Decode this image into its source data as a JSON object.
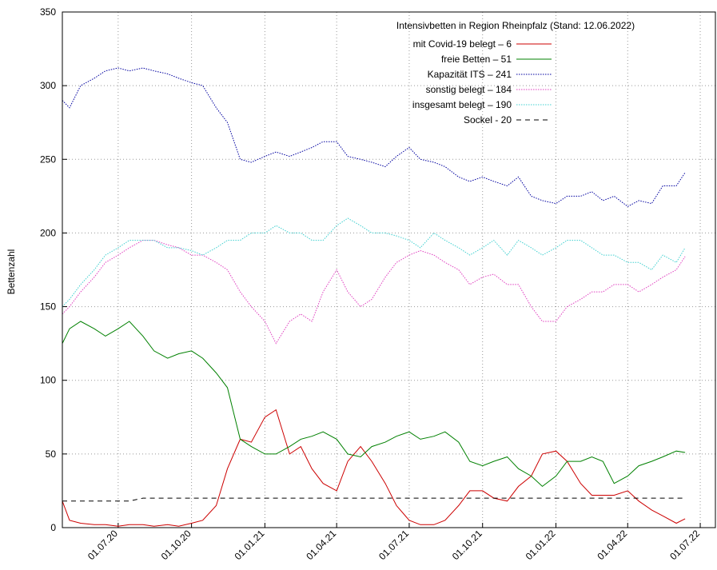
{
  "chart_data": {
    "type": "line",
    "legend_title": "Intensivbetten in Region Rheinpfalz (Stand: 12.06.2022)",
    "y_label": "Bettenzahl",
    "x": [
      "2020-04-22",
      "2020-05-01",
      "2020-05-15",
      "2020-06-01",
      "2020-06-15",
      "2020-07-01",
      "2020-07-15",
      "2020-08-01",
      "2020-08-15",
      "2020-09-01",
      "2020-09-15",
      "2020-10-01",
      "2020-10-15",
      "2020-11-01",
      "2020-11-15",
      "2020-12-01",
      "2020-12-15",
      "2021-01-01",
      "2021-01-15",
      "2021-02-01",
      "2021-02-15",
      "2021-03-01",
      "2021-03-15",
      "2021-04-01",
      "2021-04-15",
      "2021-05-01",
      "2021-05-15",
      "2021-06-01",
      "2021-06-15",
      "2021-07-01",
      "2021-07-15",
      "2021-08-01",
      "2021-08-15",
      "2021-09-01",
      "2021-09-15",
      "2021-10-01",
      "2021-10-15",
      "2021-11-01",
      "2021-11-15",
      "2021-12-01",
      "2021-12-15",
      "2022-01-01",
      "2022-01-15",
      "2022-02-01",
      "2022-02-15",
      "2022-03-01",
      "2022-03-15",
      "2022-04-01",
      "2022-04-15",
      "2022-05-01",
      "2022-05-15",
      "2022-06-01",
      "2022-06-12"
    ],
    "series": [
      {
        "name": "mit Covid-19 belegt – 6",
        "color": "#cc0000",
        "style": "solid",
        "values": [
          18,
          5,
          3,
          2,
          2,
          1,
          2,
          2,
          1,
          2,
          1,
          3,
          5,
          15,
          40,
          60,
          58,
          75,
          80,
          50,
          55,
          40,
          30,
          25,
          45,
          55,
          45,
          30,
          15,
          5,
          2,
          2,
          5,
          15,
          25,
          25,
          20,
          18,
          28,
          35,
          50,
          52,
          45,
          30,
          22,
          22,
          22,
          25,
          18,
          12,
          8,
          3,
          6
        ]
      },
      {
        "name": "freie Betten – 51",
        "color": "#008000",
        "style": "solid",
        "values": [
          125,
          135,
          140,
          135,
          130,
          135,
          140,
          130,
          120,
          115,
          118,
          120,
          115,
          105,
          95,
          60,
          55,
          50,
          50,
          55,
          60,
          62,
          65,
          60,
          50,
          48,
          55,
          58,
          62,
          65,
          60,
          62,
          65,
          58,
          45,
          42,
          45,
          48,
          40,
          35,
          28,
          35,
          45,
          45,
          48,
          45,
          30,
          35,
          42,
          45,
          48,
          52,
          51
        ]
      },
      {
        "name": "Kapazität ITS – 241",
        "color": "#0000a0",
        "style": "dotted",
        "values": [
          290,
          285,
          300,
          305,
          310,
          312,
          310,
          312,
          310,
          308,
          305,
          302,
          300,
          285,
          275,
          250,
          248,
          252,
          255,
          252,
          255,
          258,
          262,
          262,
          252,
          250,
          248,
          245,
          252,
          258,
          250,
          248,
          245,
          238,
          235,
          238,
          235,
          232,
          238,
          225,
          222,
          220,
          225,
          225,
          228,
          222,
          225,
          218,
          222,
          220,
          232,
          232,
          241
        ]
      },
      {
        "name": "sonstig belegt – 184",
        "color": "#e040c0",
        "style": "dotted",
        "values": [
          145,
          150,
          160,
          170,
          180,
          185,
          190,
          195,
          195,
          192,
          190,
          185,
          185,
          180,
          175,
          160,
          150,
          140,
          125,
          140,
          145,
          140,
          160,
          175,
          160,
          150,
          155,
          170,
          180,
          185,
          188,
          185,
          180,
          175,
          165,
          170,
          172,
          165,
          165,
          150,
          140,
          140,
          150,
          155,
          160,
          160,
          165,
          165,
          160,
          165,
          170,
          175,
          184
        ]
      },
      {
        "name": "insgesamt belegt – 190",
        "color": "#40d0d0",
        "style": "dotted",
        "values": [
          150,
          155,
          165,
          175,
          185,
          190,
          195,
          195,
          195,
          190,
          190,
          188,
          185,
          190,
          195,
          195,
          200,
          200,
          205,
          200,
          200,
          195,
          195,
          205,
          210,
          205,
          200,
          200,
          198,
          195,
          190,
          200,
          195,
          190,
          185,
          190,
          195,
          185,
          195,
          190,
          185,
          190,
          195,
          195,
          190,
          185,
          185,
          180,
          180,
          175,
          185,
          180,
          190
        ]
      },
      {
        "name": "Sockel - 20",
        "color": "#000000",
        "style": "dashed",
        "values": [
          18,
          18,
          18,
          18,
          18,
          18,
          18,
          20,
          20,
          20,
          20,
          20,
          20,
          20,
          20,
          20,
          20,
          20,
          20,
          20,
          20,
          20,
          20,
          20,
          20,
          20,
          20,
          20,
          20,
          20,
          20,
          20,
          20,
          20,
          20,
          20,
          20,
          20,
          20,
          20,
          20,
          20,
          20,
          20,
          20,
          20,
          20,
          20,
          20,
          20,
          20,
          20,
          20
        ]
      }
    ],
    "xlim": [
      "2020-04-22",
      "2022-07-20"
    ],
    "xticks": [
      {
        "value": "2020-07-01",
        "label": "01.07.20"
      },
      {
        "value": "2020-10-01",
        "label": "01.10.20"
      },
      {
        "value": "2021-01-01",
        "label": "01.01.21"
      },
      {
        "value": "2021-04-01",
        "label": "01.04.21"
      },
      {
        "value": "2021-07-01",
        "label": "01.07.21"
      },
      {
        "value": "2021-10-01",
        "label": "01.10.21"
      },
      {
        "value": "2022-01-01",
        "label": "01.01.22"
      },
      {
        "value": "2022-04-01",
        "label": "01.04.22"
      },
      {
        "value": "2022-07-01",
        "label": "01.07.22"
      }
    ],
    "ylim": [
      0,
      350
    ],
    "yticks": [
      0,
      50,
      100,
      150,
      200,
      250,
      300,
      350
    ],
    "grid": true,
    "legend_position": "top-right"
  }
}
